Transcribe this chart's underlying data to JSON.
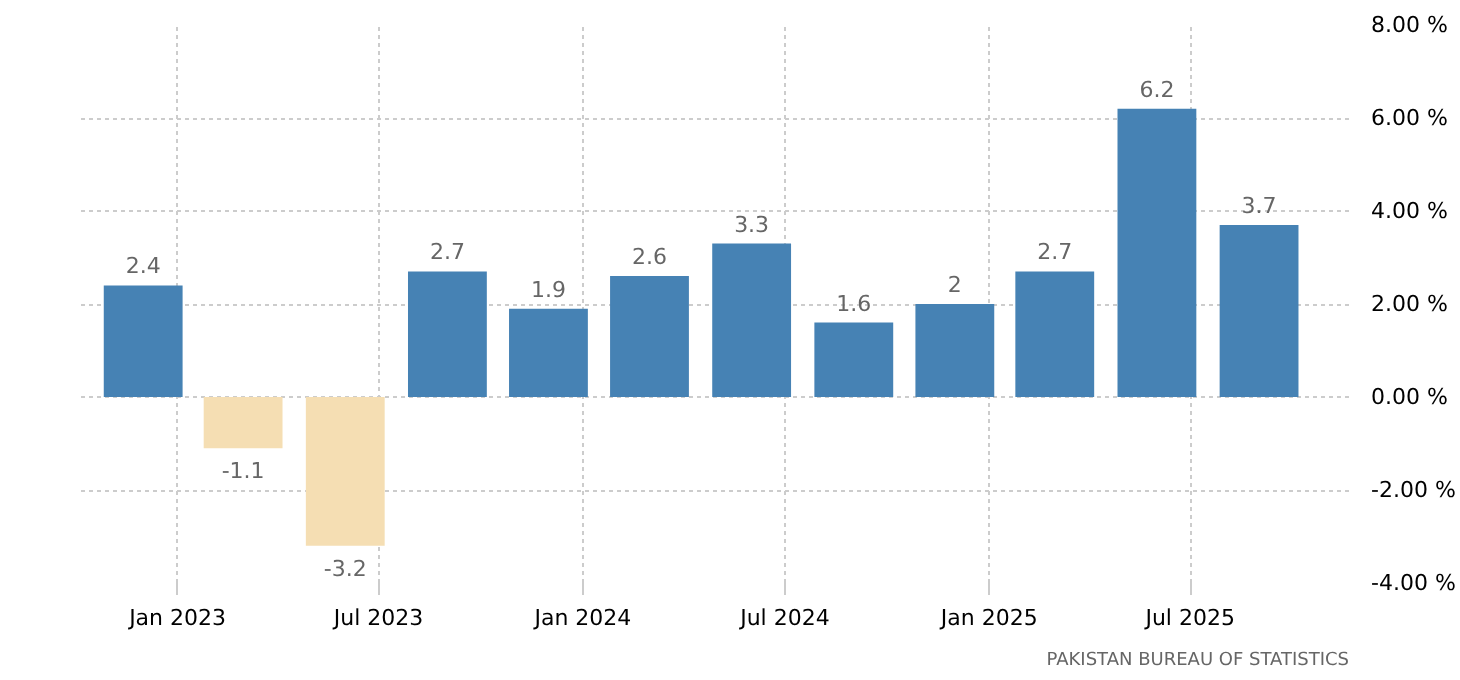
{
  "chart_data": {
    "type": "bar",
    "x": [
      "2022-12",
      "2023-03",
      "2023-06",
      "2023-09",
      "2023-12",
      "2024-03",
      "2024-06",
      "2024-09",
      "2024-12",
      "2025-03",
      "2025-06",
      "2025-09"
    ],
    "values": [
      2.4,
      -1.1,
      -3.2,
      2.7,
      1.9,
      2.6,
      3.3,
      1.6,
      2,
      2.7,
      6.2,
      3.7
    ],
    "colors": [
      "#4682b4",
      "#f5deb3",
      "#f5deb3",
      "#4682b4",
      "#4682b4",
      "#4682b4",
      "#4682b4",
      "#4682b4",
      "#4682b4",
      "#4682b4",
      "#4682b4",
      "#4682b4"
    ],
    "data_labels": true,
    "xlim": [
      "2022-10-06",
      "2025-11-21"
    ],
    "xticks": [
      {
        "value": "2023-01",
        "label": "Jan 2023"
      },
      {
        "value": "2023-07",
        "label": "Jul 2023"
      },
      {
        "value": "2024-01",
        "label": "Jan 2024"
      },
      {
        "value": "2024-07",
        "label": "Jul 2024"
      },
      {
        "value": "2025-01",
        "label": "Jan 2025"
      },
      {
        "value": "2025-07",
        "label": "Jul 2025"
      }
    ],
    "ylim": [
      -4,
      8
    ],
    "yticks": [
      {
        "value": -4,
        "label": "-4.00 %"
      },
      {
        "value": -2,
        "label": "-2.00 %"
      },
      {
        "value": 0,
        "label": "0.00 %"
      },
      {
        "value": 2,
        "label": "2.00 %"
      },
      {
        "value": 4,
        "label": "4.00 %"
      },
      {
        "value": 6,
        "label": "6.00 %"
      },
      {
        "value": 8,
        "label": "8.00 %"
      }
    ],
    "grid": true,
    "annotations": [
      "PAKISTAN BUREAU OF STATISTICS"
    ]
  }
}
